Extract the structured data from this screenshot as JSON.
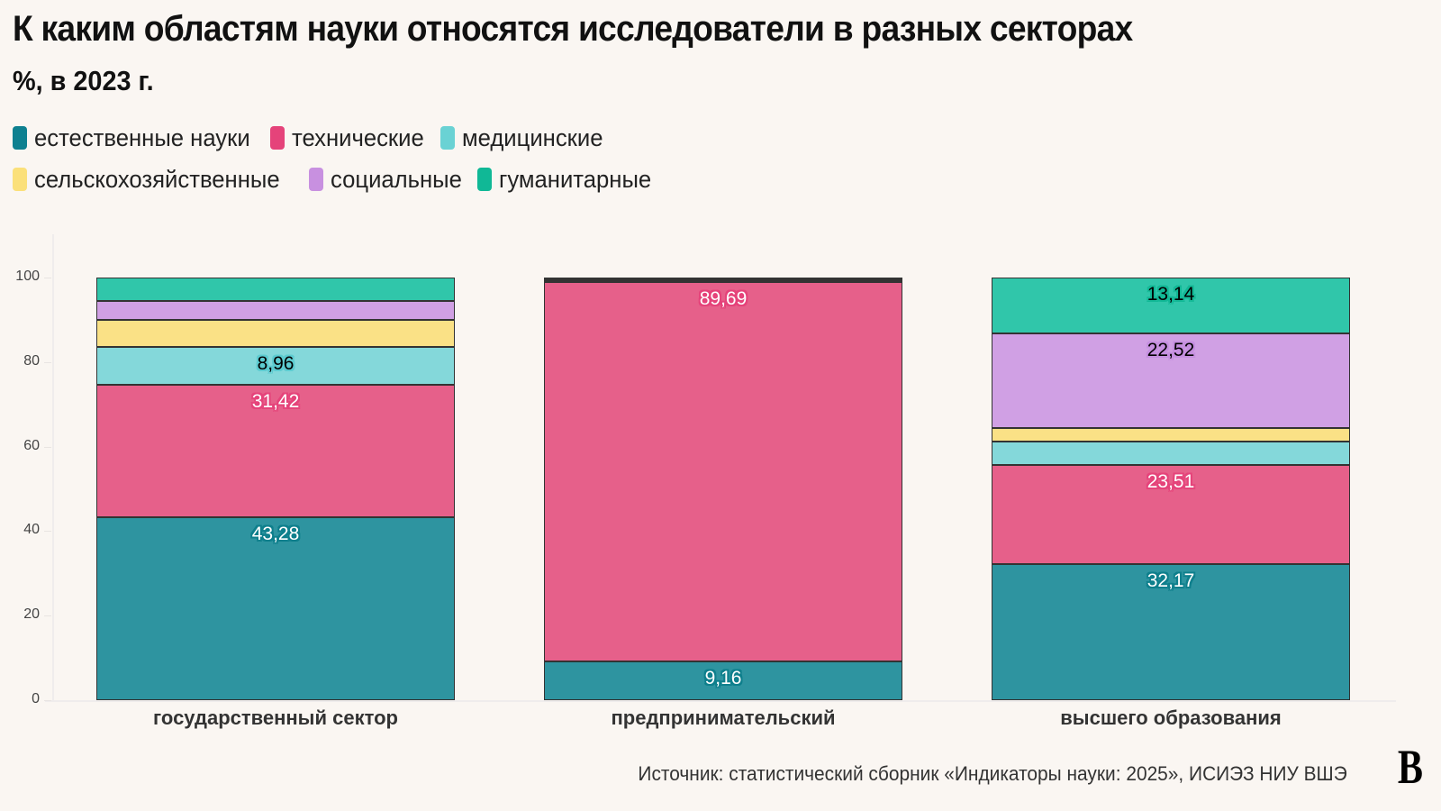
{
  "header": {
    "title": "К каким областям науки относятся исследователи в разных секторах",
    "subtitle": "%, в 2023 г."
  },
  "legend": [
    {
      "label": "естественные науки",
      "color": "#2e94a0"
    },
    {
      "label": "технические",
      "color": "#e6608a"
    },
    {
      "label": "медицинские",
      "color": "#84d8da"
    },
    {
      "label": "сельскохозяйственные",
      "color": "#fae186"
    },
    {
      "label": "социальные",
      "color": "#d0a0e4"
    },
    {
      "label": "гуманитарные",
      "color": "#30c6aa"
    }
  ],
  "footer": {
    "source": "Источник: статистический сборник «Индикаторы науки: 2025», ИСИЭЗ НИУ ВШЭ",
    "logo": "В"
  },
  "chart_data": {
    "type": "bar",
    "stacked": true,
    "title": "К каким областям науки относятся исследователи в разных секторах",
    "subtitle": "%, в 2023 г.",
    "xlabel": "",
    "ylabel": "",
    "ylim": [
      0,
      100
    ],
    "yticks": [
      0,
      20,
      40,
      60,
      80,
      100
    ],
    "legend_position": "top",
    "grid": false,
    "categories": [
      "государственный сектор",
      "предпринимательский",
      "высшего образования"
    ],
    "series": [
      {
        "name": "естественные науки",
        "color": "#2e94a0",
        "values": [
          43.28,
          9.16,
          32.17
        ],
        "labels": [
          "43,28",
          "9,16",
          "32,17"
        ]
      },
      {
        "name": "технические",
        "color": "#e6608a",
        "values": [
          31.42,
          89.69,
          23.51
        ],
        "labels": [
          "31,42",
          "89,69",
          "23,51"
        ]
      },
      {
        "name": "медицинские",
        "color": "#84d8da",
        "values": [
          8.96,
          0.3,
          5.6
        ],
        "labels": [
          "8,96",
          "",
          ""
        ]
      },
      {
        "name": "сельскохозяйственные",
        "color": "#fae186",
        "values": [
          6.3,
          0.3,
          3.06
        ],
        "labels": [
          "",
          "",
          ""
        ]
      },
      {
        "name": "социальные",
        "color": "#d0a0e4",
        "values": [
          4.6,
          0.35,
          22.52
        ],
        "labels": [
          "",
          "",
          "22,52"
        ]
      },
      {
        "name": "гуманитарные",
        "color": "#30c6aa",
        "values": [
          5.44,
          0.2,
          13.14
        ],
        "labels": [
          "",
          "",
          "13,14"
        ]
      }
    ]
  }
}
